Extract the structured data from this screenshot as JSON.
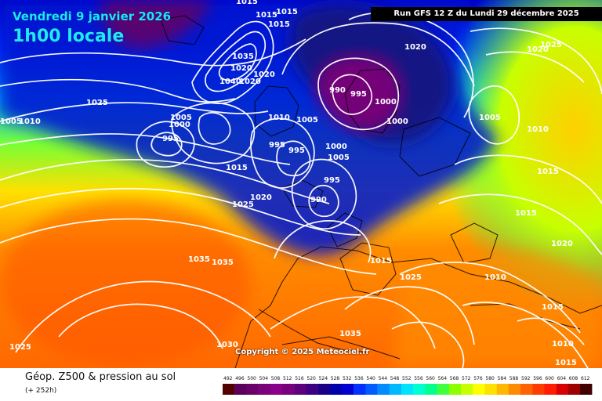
{
  "header": {
    "date": "Vendredi 9 janvier 2026",
    "hour": "1h00 locale",
    "run": "Run GFS 12 Z du Lundi 29 décembre 2025"
  },
  "map": {
    "copyright": "Copyright © 2025 Meteociel.fr",
    "pressure_labels": [
      "1015",
      "1015",
      "1015",
      "1015",
      "1035",
      "1020",
      "1020",
      "1040",
      "1020",
      "1025",
      "1020",
      "990",
      "995",
      "1000",
      "1000",
      "1020",
      "1005",
      "1010",
      "1025",
      "1005",
      "1010",
      "1005",
      "1000",
      "995",
      "995",
      "995",
      "1010",
      "1005",
      "1000",
      "1005",
      "1015",
      "1025",
      "1020",
      "990",
      "995",
      "1035",
      "1035",
      "1015",
      "1025",
      "1010",
      "1020",
      "1015",
      "1015",
      "1030",
      "1035",
      "1025",
      "1015",
      "1010",
      "1015"
    ],
    "colors": {
      "ocean_high": "#ff6a00",
      "mid_latitude": "#ffd200",
      "low_pressure": "#0020d8",
      "deep_low": "#7a0078"
    }
  },
  "footer": {
    "product": "Géop. Z500 & pression au sol",
    "forecast_hour": "(+ 252h)"
  },
  "legend": {
    "values": [
      "492",
      "496",
      "500",
      "504",
      "508",
      "512",
      "516",
      "520",
      "524",
      "528",
      "532",
      "536",
      "540",
      "544",
      "548",
      "552",
      "556",
      "560",
      "564",
      "568",
      "572",
      "576",
      "580",
      "584",
      "588",
      "592",
      "596",
      "600",
      "604",
      "608",
      "612"
    ],
    "colors": [
      "#520000",
      "#5a005a",
      "#6a006a",
      "#7b007b",
      "#8a008a",
      "#77007c",
      "#5d007e",
      "#3e0082",
      "#1b0086",
      "#0000aa",
      "#0000d0",
      "#0030ff",
      "#005cff",
      "#008bff",
      "#00b8ff",
      "#00e2ff",
      "#00ffd0",
      "#00ff8c",
      "#40ff40",
      "#8cff00",
      "#c8ff00",
      "#ffff00",
      "#ffe000",
      "#ffb800",
      "#ff8c00",
      "#ff6200",
      "#ff3c00",
      "#ff1c00",
      "#d80000",
      "#9e0000",
      "#400000"
    ]
  }
}
